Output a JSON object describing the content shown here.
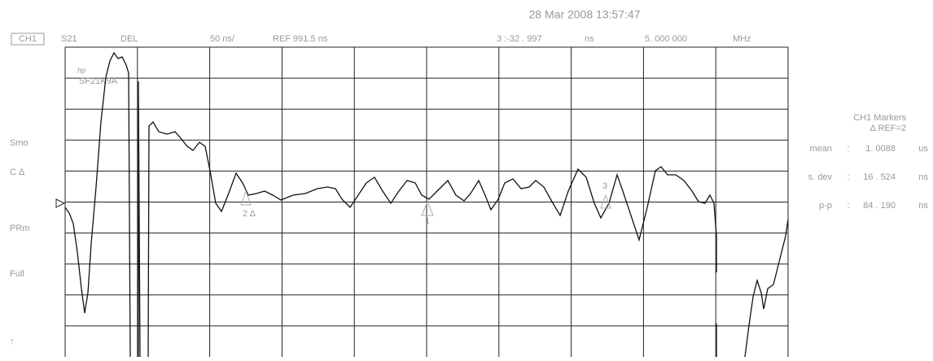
{
  "header": {
    "timestamp": "28 Mar 2008  13:57:47",
    "channel": "CH1",
    "parameter": "S21",
    "format": "DEL",
    "scale": "50 ns/",
    "reference": "REF 991.5 ns",
    "marker_value": "3 :-32  . 997",
    "marker_unit": "ns",
    "marker_freq": "5. 000  000",
    "marker_freq_unit": "MHz"
  },
  "logo": {
    "brand": "hp",
    "model": "SF21K9A"
  },
  "softkeys": [
    "Smo",
    "C Δ",
    "PRm",
    "Full",
    "↑"
  ],
  "markers": [
    "2 Δ",
    "1",
    "3"
  ],
  "stats": {
    "title": "CH1  Markers",
    "subtitle": "Δ REF=2",
    "rows": [
      [
        "mean",
        ":",
        "1. 0088",
        "us"
      ],
      [
        "s. dev",
        ":",
        "16 . 524",
        "ns"
      ],
      [
        "p-p",
        ":",
        "84 . 190",
        "ns"
      ]
    ]
  }
}
